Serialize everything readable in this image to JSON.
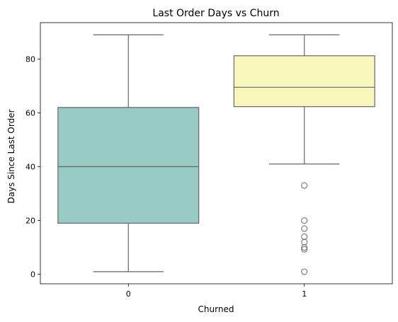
{
  "chart_data": {
    "type": "boxplot",
    "title": "Last Order Days vs Churn",
    "xlabel": "Churned",
    "ylabel": "Days Since Last Order",
    "categories": [
      "0",
      "1"
    ],
    "ylim": [
      -3.5,
      93.5
    ],
    "yticks": [
      0,
      20,
      40,
      60,
      80
    ],
    "grid": false,
    "legend": "none",
    "boxes": [
      {
        "category": "0",
        "min": 1,
        "q1": 19,
        "median": 40,
        "q3": 62,
        "max": 89,
        "outliers": [],
        "color": "#97cbc3"
      },
      {
        "category": "1",
        "min": 41,
        "q1": 62.3,
        "median": 69.5,
        "q3": 81.2,
        "max": 89,
        "outliers": [
          33,
          20,
          17,
          14,
          12,
          10,
          9.3,
          1
        ],
        "color": "#f7f7bb"
      }
    ],
    "line_color": "#666666"
  }
}
